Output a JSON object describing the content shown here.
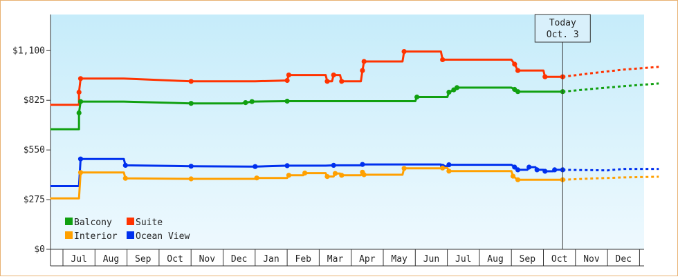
{
  "chart_data": {
    "type": "line",
    "step": true,
    "grid": false,
    "legend_position": "bottom-left",
    "ylim": [
      0,
      1300
    ],
    "yticks": [
      0,
      275,
      550,
      825,
      1100
    ],
    "ytick_labels": [
      "$0",
      "$275",
      "$550",
      "$825",
      "$1,100"
    ],
    "months": [
      "Jul",
      "Aug",
      "Sep",
      "Oct",
      "Nov",
      "Dec",
      "Jan",
      "Feb",
      "Mar",
      "Apr",
      "May",
      "Jun",
      "Jul",
      "Aug",
      "Sep",
      "Oct",
      "Nov",
      "Dec"
    ],
    "today": {
      "line1": "Today",
      "line2": "Oct. 3",
      "x": 15.6
    },
    "colors": {
      "Balcony": "#11a011",
      "Suite": "#ff3300",
      "Interior": "#ffa000",
      "Ocean View": "#0030ee"
    },
    "legend": [
      "Balcony",
      "Suite",
      "Interior",
      "Ocean View"
    ],
    "series": [
      {
        "name": "Suite",
        "points": [
          [
            -0.4,
            800
          ],
          [
            0.5,
            800
          ],
          [
            0.5,
            870
          ],
          [
            0.55,
            945
          ],
          [
            1.9,
            945
          ],
          [
            4.0,
            930
          ],
          [
            6.0,
            930
          ],
          [
            7.0,
            935
          ],
          [
            7.05,
            965
          ],
          [
            8.2,
            965
          ],
          [
            8.25,
            930
          ],
          [
            8.4,
            930
          ],
          [
            8.45,
            965
          ],
          [
            8.65,
            965
          ],
          [
            8.7,
            930
          ],
          [
            9.3,
            930
          ],
          [
            9.35,
            990
          ],
          [
            9.4,
            1040
          ],
          [
            10.6,
            1040
          ],
          [
            10.65,
            1095
          ],
          [
            11.8,
            1095
          ],
          [
            11.85,
            1050
          ],
          [
            14.0,
            1050
          ],
          [
            14.1,
            1025
          ],
          [
            14.2,
            990
          ],
          [
            15.0,
            990
          ],
          [
            15.05,
            955
          ],
          [
            15.6,
            955
          ]
        ],
        "forecast": [
          [
            15.6,
            955
          ],
          [
            16.5,
            975
          ],
          [
            17.5,
            995
          ],
          [
            18.6,
            1010
          ]
        ]
      },
      {
        "name": "Balcony",
        "points": [
          [
            -0.4,
            665
          ],
          [
            0.5,
            665
          ],
          [
            0.5,
            755
          ],
          [
            0.55,
            818
          ],
          [
            1.9,
            818
          ],
          [
            4.0,
            808
          ],
          [
            5.6,
            808
          ],
          [
            5.7,
            812
          ],
          [
            5.9,
            818
          ],
          [
            7.0,
            820
          ],
          [
            8.2,
            820
          ],
          [
            8.45,
            820
          ],
          [
            11.0,
            820
          ],
          [
            11.05,
            843
          ],
          [
            12.0,
            843
          ],
          [
            12.05,
            870
          ],
          [
            12.2,
            883
          ],
          [
            12.3,
            895
          ],
          [
            14.0,
            895
          ],
          [
            14.1,
            885
          ],
          [
            14.2,
            873
          ],
          [
            15.6,
            873
          ]
        ],
        "forecast": [
          [
            15.6,
            873
          ],
          [
            16.5,
            888
          ],
          [
            17.5,
            903
          ],
          [
            18.6,
            918
          ]
        ]
      },
      {
        "name": "Ocean View",
        "points": [
          [
            -0.4,
            350
          ],
          [
            0.5,
            350
          ],
          [
            0.55,
            500
          ],
          [
            1.9,
            500
          ],
          [
            1.95,
            465
          ],
          [
            4.0,
            460
          ],
          [
            6.0,
            458
          ],
          [
            7.0,
            463
          ],
          [
            8.2,
            463
          ],
          [
            8.45,
            465
          ],
          [
            9.3,
            465
          ],
          [
            9.35,
            470
          ],
          [
            10.6,
            470
          ],
          [
            11.8,
            470
          ],
          [
            11.85,
            460
          ],
          [
            12.0,
            460
          ],
          [
            12.05,
            468
          ],
          [
            14.0,
            468
          ],
          [
            14.1,
            455
          ],
          [
            14.2,
            440
          ],
          [
            14.5,
            440
          ],
          [
            14.55,
            455
          ],
          [
            14.75,
            455
          ],
          [
            14.8,
            440
          ],
          [
            15.0,
            440
          ],
          [
            15.05,
            432
          ],
          [
            15.3,
            432
          ],
          [
            15.35,
            440
          ],
          [
            15.6,
            440
          ]
        ],
        "forecast": [
          [
            15.6,
            440
          ],
          [
            16.5,
            438
          ],
          [
            17.0,
            437
          ],
          [
            17.5,
            445
          ],
          [
            18.6,
            445
          ]
        ]
      },
      {
        "name": "Interior",
        "points": [
          [
            -0.4,
            282
          ],
          [
            0.5,
            282
          ],
          [
            0.55,
            425
          ],
          [
            1.9,
            425
          ],
          [
            1.95,
            393
          ],
          [
            4.0,
            390
          ],
          [
            6.0,
            390
          ],
          [
            6.05,
            395
          ],
          [
            7.0,
            395
          ],
          [
            7.05,
            410
          ],
          [
            7.5,
            410
          ],
          [
            7.55,
            422
          ],
          [
            8.2,
            422
          ],
          [
            8.25,
            403
          ],
          [
            8.45,
            403
          ],
          [
            8.5,
            420
          ],
          [
            8.65,
            420
          ],
          [
            8.7,
            410
          ],
          [
            9.3,
            410
          ],
          [
            9.35,
            427
          ],
          [
            9.4,
            413
          ],
          [
            10.6,
            413
          ],
          [
            10.65,
            448
          ],
          [
            11.8,
            448
          ],
          [
            11.85,
            450
          ],
          [
            12.0,
            450
          ],
          [
            12.05,
            433
          ],
          [
            14.0,
            433
          ],
          [
            14.05,
            405
          ],
          [
            14.2,
            385
          ],
          [
            15.0,
            385
          ],
          [
            15.6,
            385
          ]
        ],
        "forecast": [
          [
            15.6,
            385
          ],
          [
            16.5,
            392
          ],
          [
            17.5,
            398
          ],
          [
            18.6,
            402
          ]
        ]
      }
    ]
  }
}
